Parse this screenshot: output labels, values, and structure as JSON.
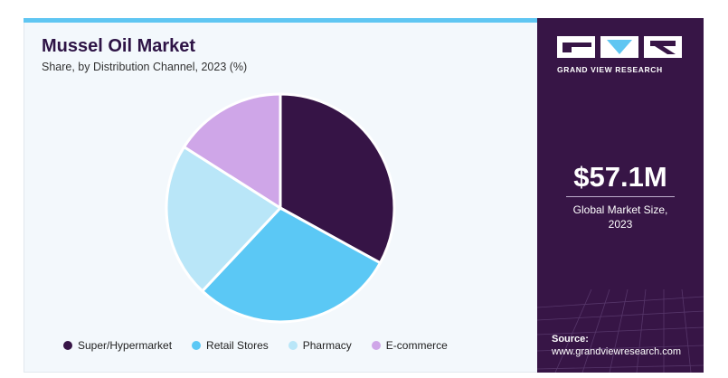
{
  "header": {
    "title": "Mussel Oil Market",
    "subtitle": "Share, by Distribution Channel, 2023 (%)"
  },
  "brand": {
    "name": "GRAND VIEW RESEARCH"
  },
  "kpi": {
    "value": "$57.1M",
    "label_line1": "Global Market Size,",
    "label_line2": "2023"
  },
  "source": {
    "label": "Source:",
    "url": "www.grandviewresearch.com"
  },
  "colors": {
    "accent": "#5fc6f2",
    "brand_purple": "#371546"
  },
  "chart_data": {
    "type": "pie",
    "categories": [
      "Super/Hypermarket",
      "Retail Stores",
      "Pharmacy",
      "E-commerce"
    ],
    "values": [
      33,
      29,
      22,
      16
    ],
    "colors": [
      "#361446",
      "#5bc8f5",
      "#b9e6f8",
      "#cfa6e8"
    ],
    "legend_position": "bottom"
  }
}
